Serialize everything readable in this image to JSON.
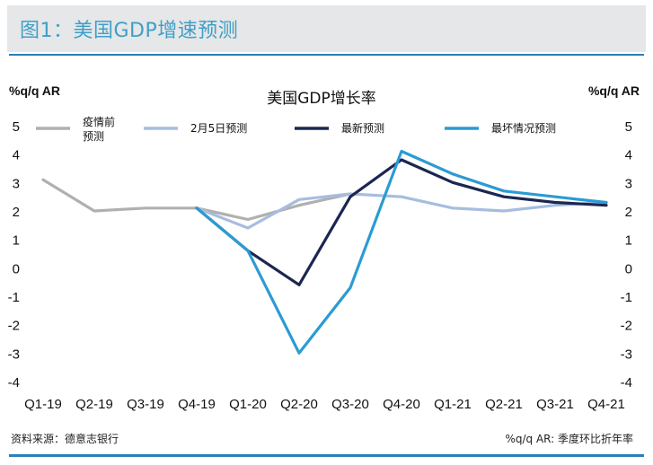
{
  "header": {
    "title": "图1：美国GDP增速预测"
  },
  "footer": {
    "source": "资料来源：德意志银行",
    "note": "%q/q AR: 季度环比折年率"
  },
  "colors": {
    "header_text": "#3f9fc8",
    "accent_rule": "#2c7fb8"
  },
  "chart_data": {
    "type": "line",
    "title": "美国GDP增长率",
    "ylabel_left": "%q/q AR",
    "ylabel_right": "%q/q AR",
    "ylim": [
      -4,
      5
    ],
    "yticks": [
      "5",
      "4",
      "3",
      "2",
      "1",
      "0",
      "-1",
      "-2",
      "-3",
      "-4"
    ],
    "categories": [
      "Q1-19",
      "Q2-19",
      "Q3-19",
      "Q4-19",
      "Q1-20",
      "Q2-20",
      "Q3-20",
      "Q4-20",
      "Q1-21",
      "Q2-21",
      "Q3-21",
      "Q4-21"
    ],
    "grid": false,
    "legend_position": "top",
    "series": [
      {
        "name": "疫情前预测",
        "color": "#b0b0b0",
        "values": [
          3.1,
          2.0,
          2.1,
          2.1,
          1.7,
          2.2,
          2.6,
          null,
          null,
          null,
          null,
          null
        ]
      },
      {
        "name": "2月5日预测",
        "color": "#a7bde0",
        "values": [
          null,
          null,
          null,
          2.1,
          1.4,
          2.4,
          2.6,
          2.5,
          2.1,
          2.0,
          2.2,
          2.3
        ]
      },
      {
        "name": "最新预测",
        "color": "#1b2652",
        "values": [
          null,
          null,
          null,
          2.1,
          0.6,
          -0.6,
          2.5,
          3.8,
          3.0,
          2.5,
          2.3,
          2.2
        ]
      },
      {
        "name": "最坏情况预测",
        "color": "#2b9bd3",
        "values": [
          null,
          null,
          null,
          2.1,
          0.6,
          -3.0,
          -0.7,
          4.1,
          3.3,
          2.7,
          2.5,
          2.3
        ]
      }
    ]
  }
}
